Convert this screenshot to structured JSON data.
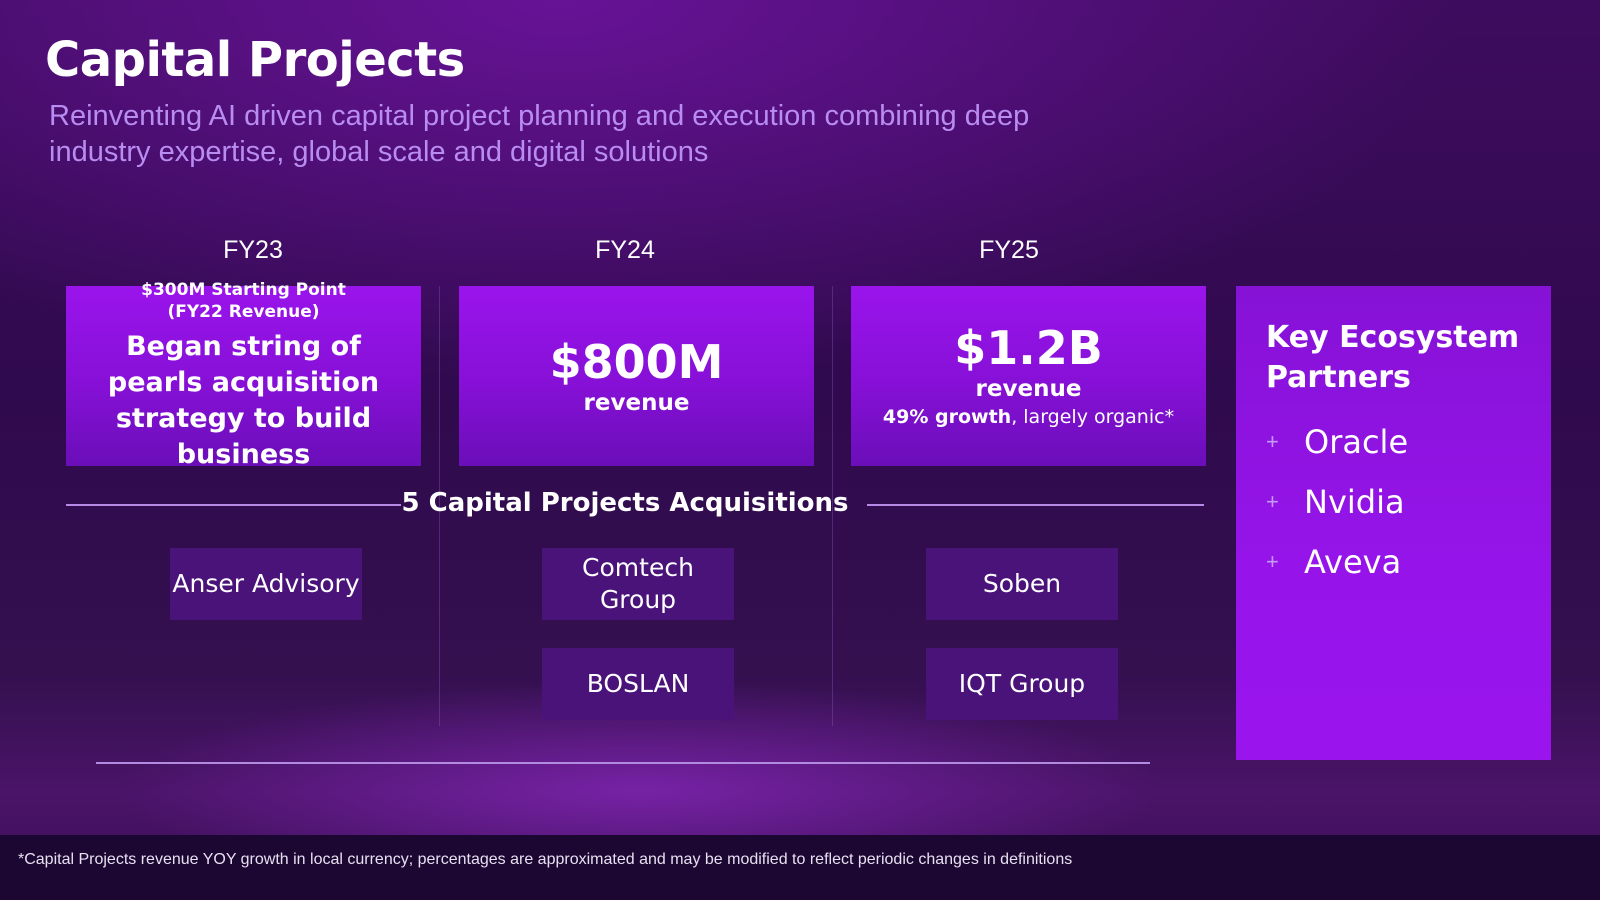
{
  "title": "Capital Projects",
  "subtitle": "Reinventing AI driven capital project planning and execution combining deep industry expertise, global scale and digital solutions",
  "years": [
    {
      "label": "FY23"
    },
    {
      "label": "FY24"
    },
    {
      "label": "FY25"
    }
  ],
  "fy23_card": {
    "starting_point": "$300M Starting Point",
    "starting_point_note": "(FY22 Revenue)",
    "headline": "Began string of pearls acquisition strategy to build business"
  },
  "fy24_card": {
    "amount": "$800M",
    "label": "revenue"
  },
  "fy25_card": {
    "amount": "$1.2B",
    "label": "revenue",
    "growth_bold": "49% growth",
    "growth_rest": ", largely organic*"
  },
  "acquisitions": {
    "heading": "5 Capital Projects Acquisitions",
    "fy23": [
      "Anser Advisory"
    ],
    "fy24": [
      "Comtech Group",
      "BOSLAN"
    ],
    "fy25": [
      "Soben",
      "IQT Group"
    ]
  },
  "partners": {
    "title": "Key Ecosystem Partners",
    "bullet_glyph": "+",
    "items": [
      "Oracle",
      "Nvidia",
      "Aveva"
    ]
  },
  "footnote": "*Capital Projects revenue YOY growth in local currency; percentages are approximated and may be modified to reflect periodic changes in definitions",
  "colors": {
    "background": "#2f0a4d",
    "card_purple": "#9a14ec",
    "subtitle_lavender": "#b98cf2",
    "acquisition_box": "#4a137a",
    "footer_bar": "#1c0733"
  }
}
